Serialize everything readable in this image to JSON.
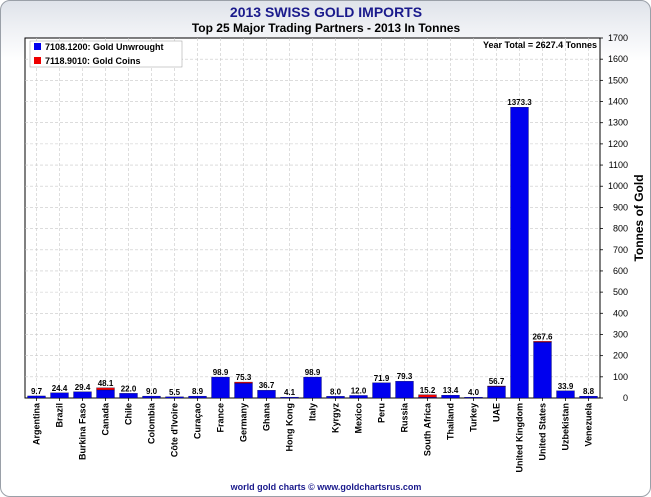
{
  "chart_data": {
    "type": "bar",
    "title": "2013 SWISS GOLD IMPORTS",
    "subtitle": "Top 25 Major Trading Partners - 2013 In Tonnes",
    "annotation": "Year Total = 2627.4 Tonnes",
    "ylabel": "Tonnes of Gold",
    "footer": "world gold charts © www.goldchartsrus.com",
    "ylim": [
      0,
      1700
    ],
    "yticks": [
      0,
      100,
      200,
      300,
      400,
      500,
      600,
      700,
      800,
      900,
      1000,
      1100,
      1200,
      1300,
      1400,
      1500,
      1600,
      1700
    ],
    "grid": true,
    "legend_position": "top-left",
    "stacked": true,
    "categories": [
      "Argentina",
      "Brazil",
      "Burkina Faso",
      "Canada",
      "Chile",
      "Colombia",
      "Côte d'Ivoire",
      "Curaçao",
      "France",
      "Germany",
      "Ghana",
      "Hong Kong",
      "Italy",
      "Kyrgyz",
      "Mexico",
      "Peru",
      "Russia",
      "South Africa",
      "Thailand",
      "Turkey",
      "UAE",
      "United Kingdom",
      "United States",
      "Uzbekistan",
      "Venezuela"
    ],
    "totals": [
      9.7,
      24.4,
      29.4,
      48.1,
      22.0,
      9.0,
      5.5,
      8.9,
      98.9,
      75.3,
      36.7,
      4.1,
      98.9,
      8.0,
      12.0,
      71.9,
      79.3,
      15.2,
      13.4,
      4.0,
      56.7,
      1373.3,
      267.6,
      33.9,
      8.8
    ],
    "series": [
      {
        "name": "7108.1200: Gold Unwrought",
        "color": "#0000ee",
        "values": [
          9.7,
          24.4,
          29.4,
          38.1,
          22.0,
          9.0,
          5.5,
          8.9,
          98.9,
          69.3,
          36.7,
          4.1,
          98.9,
          8.0,
          12.0,
          71.9,
          79.3,
          3.2,
          13.4,
          4.0,
          54.7,
          1373.3,
          263.6,
          33.9,
          8.8
        ]
      },
      {
        "name": "7118.9010: Gold Coins",
        "color": "#ee0000",
        "values": [
          0,
          0,
          0,
          10.0,
          0,
          0,
          0,
          0,
          0,
          6.0,
          0,
          0,
          0,
          0,
          0,
          0,
          0,
          12.0,
          0,
          0,
          2.0,
          0,
          4.0,
          0,
          0
        ]
      }
    ]
  }
}
